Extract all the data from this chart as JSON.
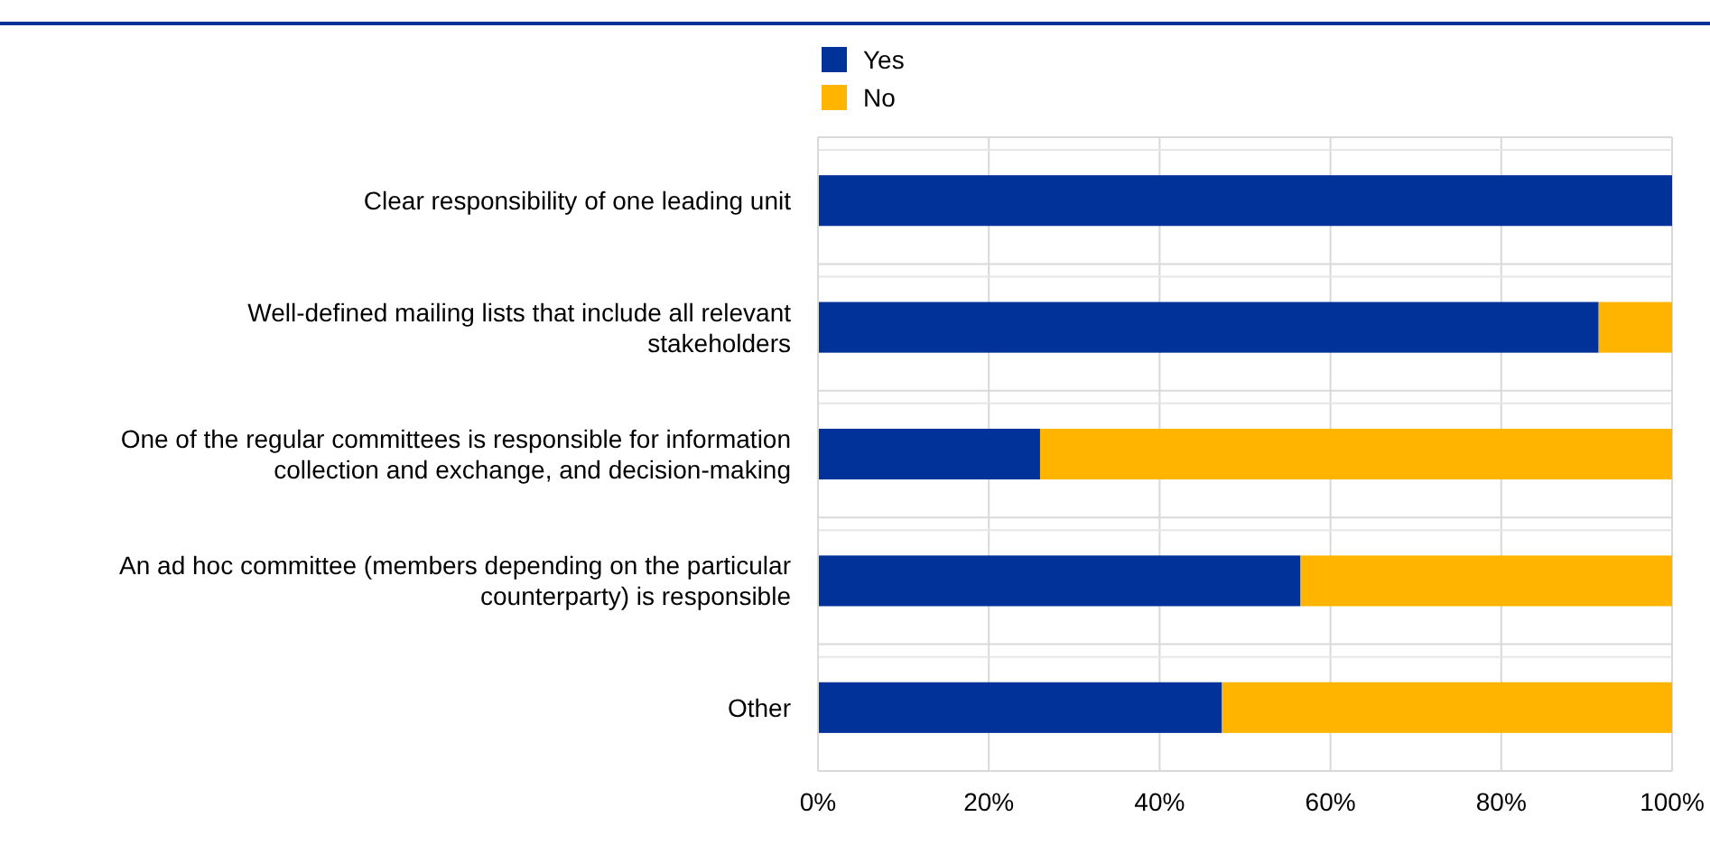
{
  "chart_data": {
    "type": "bar",
    "orientation": "horizontal",
    "stacked": true,
    "categories": [
      "Clear responsibility of one leading unit",
      "Well-defined mailing lists that include all relevant stakeholders",
      "One of the regular committees is responsible for information collection and exchange, and decision-making",
      "An ad hoc committee (members depending on the particular counterparty) is responsible",
      "Other"
    ],
    "series": [
      {
        "name": "Yes",
        "color": "#003299",
        "values": [
          100,
          91.4,
          26,
          56.5,
          47.3
        ]
      },
      {
        "name": "No",
        "color": "#ffb400",
        "values": [
          0,
          8.6,
          74,
          43.5,
          52.7
        ]
      }
    ],
    "xlim": [
      0,
      100
    ],
    "xticks": [
      {
        "value": 0,
        "label": "0%"
      },
      {
        "value": 20,
        "label": "20%"
      },
      {
        "value": 40,
        "label": "40%"
      },
      {
        "value": 60,
        "label": "60%"
      },
      {
        "value": 80,
        "label": "80%"
      },
      {
        "value": 100,
        "label": "100%"
      }
    ],
    "grid": true,
    "legend": "top"
  }
}
